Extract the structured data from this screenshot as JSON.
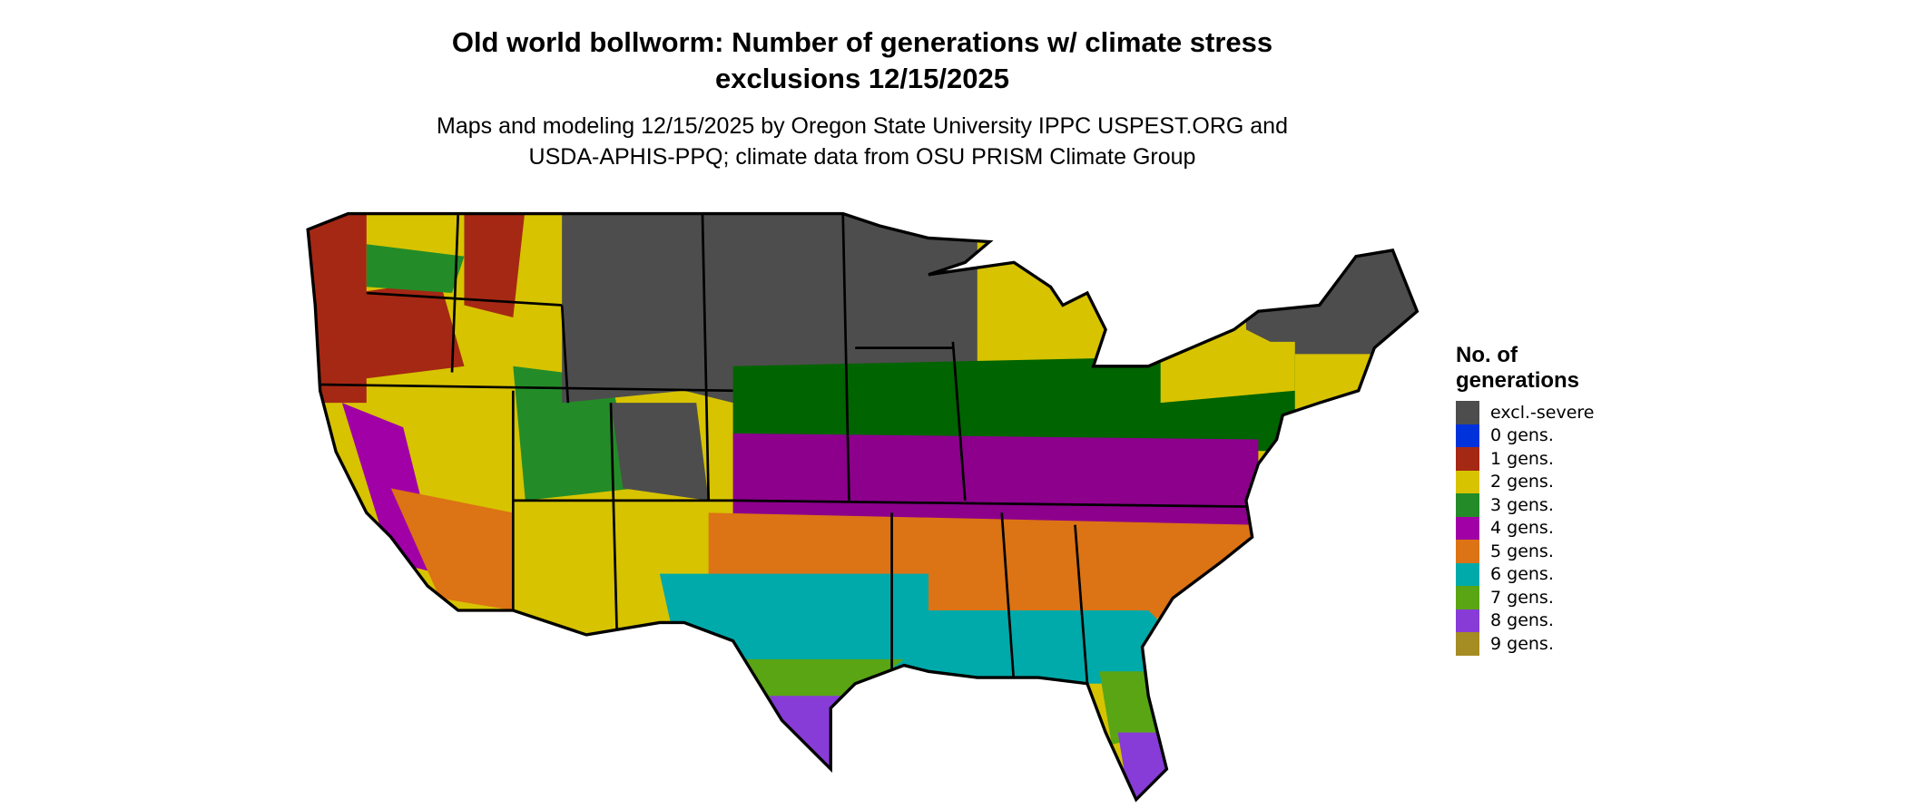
{
  "title": {
    "line1": "Old world bollworm: Number of generations w/ climate stress",
    "line2": "exclusions 12/15/2025"
  },
  "subtitle": {
    "line1": "Maps and modeling 12/15/2025 by Oregon State University IPPC USPEST.ORG and",
    "line2": "USDA-APHIS-PPQ; climate data from OSU PRISM Climate Group"
  },
  "legend": {
    "title_line1": "No. of",
    "title_line2": "generations",
    "items": [
      {
        "label": "excl.-severe",
        "color": "#4d4d4d"
      },
      {
        "label": "0 gens.",
        "color": "#0032dc"
      },
      {
        "label": "1 gens.",
        "color": "#a52814"
      },
      {
        "label": "2 gens.",
        "color": "#d7c300"
      },
      {
        "label": "3 gens.",
        "color": "#238c28"
      },
      {
        "label": "4 gens.",
        "color": "#a000a5"
      },
      {
        "label": "5 gens.",
        "color": "#dc7314"
      },
      {
        "label": "6 gens.",
        "color": "#00aaaa"
      },
      {
        "label": "7 gens.",
        "color": "#5aa514"
      },
      {
        "label": "8 gens.",
        "color": "#873cd7"
      },
      {
        "label": "9 gens.",
        "color": "#a58c23"
      }
    ]
  },
  "map": {
    "region": "Contiguous United States",
    "highlight_colors": {
      "dark_green": "#006400",
      "dark_purple": "#8c008c",
      "cyan": "#00e6e6",
      "light_green": "#90ee90"
    }
  }
}
